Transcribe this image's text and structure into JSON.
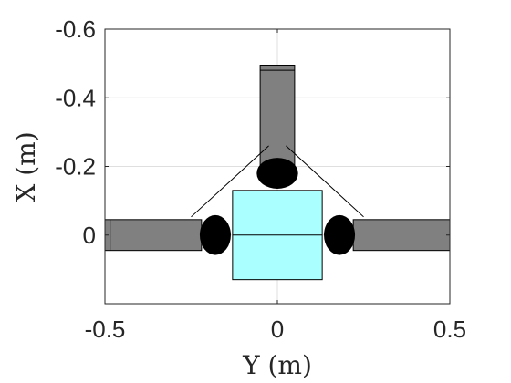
{
  "chart_data": {
    "type": "scatter",
    "title": "",
    "xlabel": "Y (m)",
    "ylabel": "X (m)",
    "xlim": [
      -0.5,
      0.5
    ],
    "ylim": [
      -0.6,
      0.2
    ],
    "y_axis_reversed": true,
    "grid": true,
    "x_ticks": [
      {
        "value": -0.5,
        "label": "-0.5"
      },
      {
        "value": 0,
        "label": "0"
      },
      {
        "value": 0.5,
        "label": "0.5"
      }
    ],
    "y_ticks": [
      {
        "value": -0.6,
        "label": "-0.6"
      },
      {
        "value": -0.4,
        "label": "-0.4"
      },
      {
        "value": -0.2,
        "label": "-0.2"
      },
      {
        "value": 0,
        "label": "0"
      }
    ],
    "colors": {
      "body": "#aaffff",
      "link": "#808080",
      "foot": "#000000",
      "tether": "#000000",
      "grid": "#dfdfdf",
      "axis": "#262626"
    },
    "shapes": [
      {
        "name": "body",
        "kind": "rect",
        "x": [
          -0.13,
          0.13
        ],
        "y": [
          -0.13,
          0.13
        ],
        "fill": "#aaffff"
      },
      {
        "name": "body-centerline",
        "kind": "line",
        "points": [
          [
            -0.13,
            0
          ],
          [
            0.13,
            0
          ]
        ]
      },
      {
        "name": "link-top",
        "kind": "rect",
        "x": [
          -0.05,
          0.05
        ],
        "y": [
          -0.495,
          -0.2
        ],
        "fill": "#808080"
      },
      {
        "name": "link-top-endline",
        "kind": "line",
        "points": [
          [
            -0.05,
            -0.48
          ],
          [
            0.05,
            -0.48
          ]
        ]
      },
      {
        "name": "link-left",
        "kind": "rect",
        "x": [
          -0.5,
          -0.22
        ],
        "y": [
          -0.045,
          0.045
        ],
        "fill": "#808080"
      },
      {
        "name": "link-left-endline",
        "kind": "line",
        "points": [
          [
            -0.485,
            -0.045
          ],
          [
            -0.485,
            0.045
          ]
        ]
      },
      {
        "name": "link-right",
        "kind": "rect",
        "x": [
          0.22,
          0.5
        ],
        "y": [
          -0.045,
          0.045
        ],
        "fill": "#808080"
      },
      {
        "name": "foot-top",
        "kind": "ellipse",
        "cx": 0,
        "cy": -0.18,
        "rx": 0.06,
        "ry": 0.045,
        "fill": "#000000"
      },
      {
        "name": "foot-left",
        "kind": "ellipse",
        "cx": -0.18,
        "cy": 0,
        "rx": 0.045,
        "ry": 0.058,
        "fill": "#000000"
      },
      {
        "name": "foot-right",
        "kind": "ellipse",
        "cx": 0.18,
        "cy": 0,
        "rx": 0.045,
        "ry": 0.058,
        "fill": "#000000"
      },
      {
        "name": "tether-left",
        "kind": "line",
        "points": [
          [
            -0.025,
            -0.26
          ],
          [
            -0.25,
            -0.053
          ]
        ]
      },
      {
        "name": "tether-right",
        "kind": "line",
        "points": [
          [
            0.025,
            -0.26
          ],
          [
            0.25,
            -0.053
          ]
        ]
      }
    ]
  }
}
